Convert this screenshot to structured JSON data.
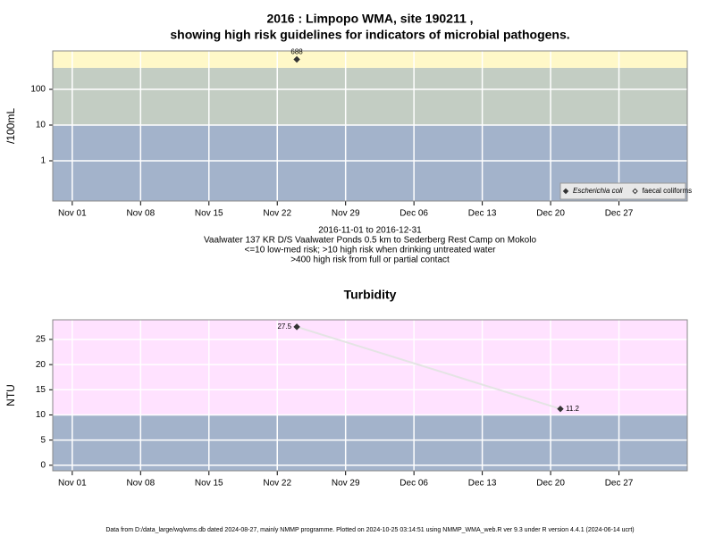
{
  "chart_data": [
    {
      "type": "line",
      "title": [
        "2016 : Limpopo WMA, site 190211 ,",
        "showing high risk guidelines for indicators of microbial pathogens."
      ],
      "y_label": "/100mL",
      "notes": [
        "2016-11-01 to 2016-12-31",
        "Vaalwater 137 KR D/S Vaalwater Ponds 0.5 km to Sederberg Rest Camp on Mokolo",
        "<=10 low-med risk; >10 high risk when drinking untreated water",
        ">400 high risk from full or partial contact"
      ],
      "x": [
        "2016-11-24"
      ],
      "series": [
        {
          "name": "Escherichia coli",
          "color": "#333333",
          "marker": "filled",
          "values": [
            688
          ]
        },
        {
          "name": "faecal coliforms",
          "color": "#333333",
          "marker": "open",
          "values": [
            null
          ]
        }
      ],
      "log_scale": true,
      "ylim": [
        0.075,
        1190
      ],
      "yticks": [
        1,
        10,
        100
      ],
      "xlim": [
        "2016-10-30",
        "2017-01-03"
      ],
      "xticks": [
        {
          "value": "2016-11-01",
          "label": "Nov 01"
        },
        {
          "value": "2016-11-08",
          "label": "Nov 08"
        },
        {
          "value": "2016-11-15",
          "label": "Nov 15"
        },
        {
          "value": "2016-11-22",
          "label": "Nov 22"
        },
        {
          "value": "2016-11-29",
          "label": "Nov 29"
        },
        {
          "value": "2016-12-06",
          "label": "Dec 06"
        },
        {
          "value": "2016-12-13",
          "label": "Dec 13"
        },
        {
          "value": "2016-12-20",
          "label": "Dec 20"
        },
        {
          "value": "2016-12-27",
          "label": "Dec 27"
        }
      ],
      "thresholds": [
        10,
        400
      ],
      "band_colors": [
        "#a3b3cb",
        "#c3cdc3",
        "#fff8c8"
      ],
      "grid": true,
      "legend": "bottom-right"
    },
    {
      "type": "line",
      "title": [
        "Turbidity"
      ],
      "y_label": "NTU",
      "x": [
        "2016-11-24",
        "2016-12-21"
      ],
      "series": [
        {
          "color": "#333333",
          "line_color": "#e4e4e4",
          "marker": "filled",
          "values": [
            27.5,
            11.2
          ]
        }
      ],
      "log_scale": false,
      "ylim": [
        -1.1,
        28.9
      ],
      "yticks": [
        0,
        5,
        10,
        15,
        20,
        25
      ],
      "xlim": [
        "2016-10-30",
        "2017-01-03"
      ],
      "xticks": [
        {
          "value": "2016-11-01",
          "label": "Nov 01"
        },
        {
          "value": "2016-11-08",
          "label": "Nov 08"
        },
        {
          "value": "2016-11-15",
          "label": "Nov 15"
        },
        {
          "value": "2016-11-22",
          "label": "Nov 22"
        },
        {
          "value": "2016-11-29",
          "label": "Nov 29"
        },
        {
          "value": "2016-12-06",
          "label": "Dec 06"
        },
        {
          "value": "2016-12-13",
          "label": "Dec 13"
        },
        {
          "value": "2016-12-20",
          "label": "Dec 20"
        },
        {
          "value": "2016-12-27",
          "label": "Dec 27"
        }
      ],
      "thresholds": [
        10
      ],
      "band_colors": [
        "#a3b3cb",
        "#ffe2ff"
      ],
      "grid": true
    }
  ],
  "footer": "Data from D:/data_large/wq/wms.db dated 2024-08-27, mainly NMMP programme. Plotted on 2024-10-25 03:14:51 using NMMP_WMA_web.R ver 9.3 under R version 4.4.1 (2024-06-14 ucrt)"
}
